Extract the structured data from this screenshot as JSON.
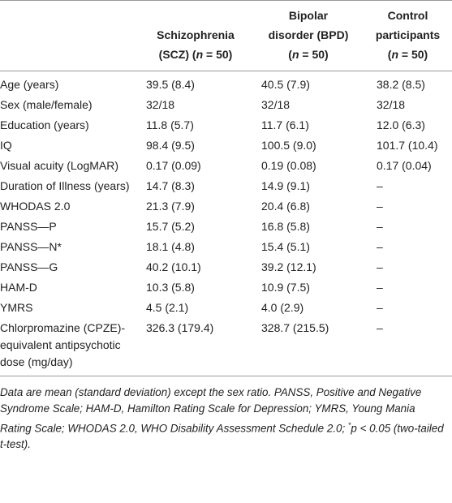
{
  "table": {
    "header": [
      [
        [
          "Schizophrenia"
        ],
        [
          "(SCZ) (",
          "n",
          " = 50)"
        ]
      ],
      [
        [
          "Bipolar"
        ],
        [
          "disorder (BPD)"
        ],
        [
          "(",
          "n",
          " = 50)"
        ]
      ],
      [
        [
          "Control"
        ],
        [
          "participants"
        ],
        [
          "(",
          "n",
          " = 50)"
        ]
      ]
    ],
    "rows": [
      [
        "Age (years)",
        "39.5 (8.4)",
        "40.5 (7.9)",
        "38.2 (8.5)"
      ],
      [
        "Sex (male/female)",
        "32/18",
        "32/18",
        "32/18"
      ],
      [
        "Education (years)",
        "11.8 (5.7)",
        "11.7 (6.1)",
        "12.0 (6.3)"
      ],
      [
        "IQ",
        "98.4 (9.5)",
        "100.5 (9.0)",
        "101.7 (10.4)"
      ],
      [
        "Visual acuity (LogMAR)",
        "0.17 (0.09)",
        "0.19 (0.08)",
        "0.17 (0.04)"
      ],
      [
        "Duration of Illness (years)",
        "14.7 (8.3)",
        "14.9 (9.1)",
        "–"
      ],
      [
        "WHODAS 2.0",
        "21.3 (7.9)",
        "20.4 (6.8)",
        "–"
      ],
      [
        "PANSS—P",
        "15.7 (5.2)",
        "16.8 (5.8)",
        "–"
      ],
      [
        "PANSS—N*",
        "18.1 (4.8)",
        "15.4 (5.1)",
        "–"
      ],
      [
        "PANSS—G",
        "40.2 (10.1)",
        "39.2 (12.1)",
        "–"
      ],
      [
        "HAM-D",
        "10.3 (5.8)",
        "10.9 (7.5)",
        "–"
      ],
      [
        "YMRS",
        "4.5 (2.1)",
        "4.0 (2.9)",
        "–"
      ],
      [
        "Chlorpromazine (CPZE)-equivalent antipsychotic dose (mg/day)",
        "326.3 (179.4)",
        "328.7 (215.5)",
        "–"
      ]
    ]
  },
  "footnote": [
    "Data are mean (standard deviation) except the sex ratio. PANSS, Positive and Negative Syndrome Scale; HAM-D, Hamilton Rating Scale for Depression; YMRS, Young Mania Rating Scale; WHODAS 2.0, WHO Disability Assessment Schedule 2.0; ",
    "*",
    "p < 0.05 (two-tailed t-test)."
  ]
}
